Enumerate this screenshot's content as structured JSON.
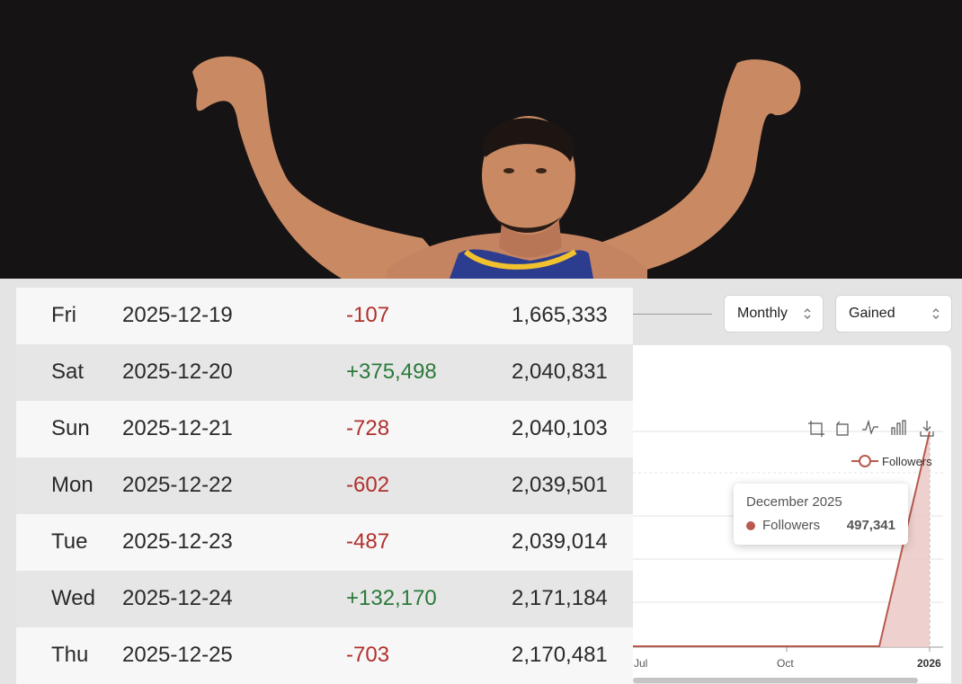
{
  "controls": {
    "period": {
      "label": "Monthly"
    },
    "metric": {
      "label": "Gained"
    }
  },
  "table": {
    "rows": [
      {
        "day": "Fri",
        "date": "2025-12-19",
        "change": "-107",
        "total": "1,665,333",
        "sign": "neg"
      },
      {
        "day": "Sat",
        "date": "2025-12-20",
        "change": "+375,498",
        "total": "2,040,831",
        "sign": "pos"
      },
      {
        "day": "Sun",
        "date": "2025-12-21",
        "change": "-728",
        "total": "2,040,103",
        "sign": "neg"
      },
      {
        "day": "Mon",
        "date": "2025-12-22",
        "change": "-602",
        "total": "2,039,501",
        "sign": "neg"
      },
      {
        "day": "Tue",
        "date": "2025-12-23",
        "change": "-487",
        "total": "2,039,014",
        "sign": "neg"
      },
      {
        "day": "Wed",
        "date": "2025-12-24",
        "change": "+132,170",
        "total": "2,171,184",
        "sign": "pos"
      },
      {
        "day": "Thu",
        "date": "2025-12-25",
        "change": "-703",
        "total": "2,170,481",
        "sign": "neg"
      }
    ]
  },
  "chart": {
    "legend": "Followers",
    "x_ticks": [
      "Jul",
      "Oct",
      "2026"
    ],
    "tooltip": {
      "title": "December 2025",
      "series": "Followers",
      "value": "497,341"
    },
    "line_color": "#b85a4f",
    "fill_color": "#eac6c2"
  },
  "icons": [
    "crop-icon",
    "reset-icon",
    "line-chart-icon",
    "bar-chart-icon",
    "download-icon"
  ]
}
